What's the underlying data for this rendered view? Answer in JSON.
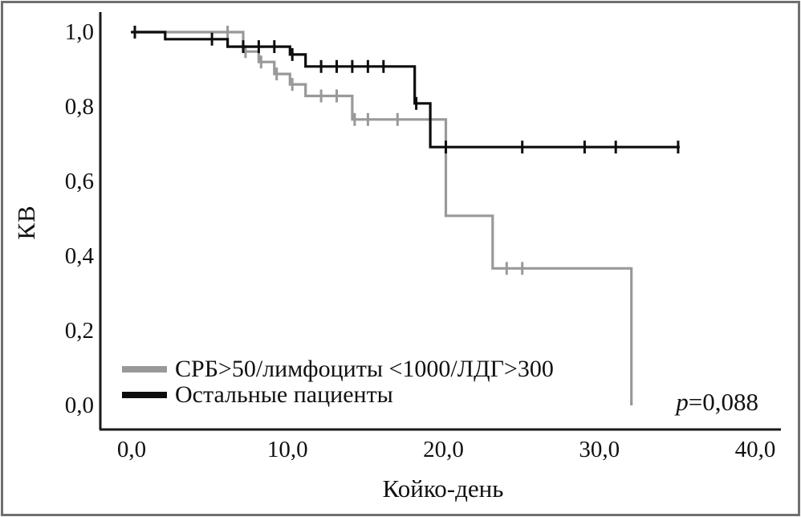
{
  "frame": {
    "border_color": "#6f6f6f"
  },
  "chart_data": {
    "type": "line",
    "subtype": "kaplan-meier-step-survival",
    "title": "",
    "xlabel": "Койко-день",
    "ylabel": "КВ",
    "xlim": [
      0,
      40
    ],
    "ylim": [
      0.0,
      1.0
    ],
    "grid": false,
    "legend_position": "inside-lower-left",
    "x_ticks": [
      {
        "label": "0,0",
        "value": 0
      },
      {
        "label": "10,0",
        "value": 10
      },
      {
        "label": "20,0",
        "value": 20
      },
      {
        "label": "30,0",
        "value": 30
      },
      {
        "label": "40,0",
        "value": 40
      }
    ],
    "y_ticks": [
      {
        "label": "0,0",
        "value": 0.0
      },
      {
        "label": "0,2",
        "value": 0.2
      },
      {
        "label": "0,4",
        "value": 0.4
      },
      {
        "label": "0,6",
        "value": 0.6
      },
      {
        "label": "0,8",
        "value": 0.8
      },
      {
        "label": "1,0",
        "value": 1.0
      }
    ],
    "annotation": {
      "symbol": "p",
      "value_text": "=0,088",
      "full": "p=0,088"
    },
    "series": [
      {
        "name": "СРБ>50/лимфоциты <1000/ЛДГ>300",
        "color": "#999999",
        "steps": [
          [
            0,
            1.0
          ],
          [
            7,
            1.0
          ],
          [
            7,
            0.948
          ],
          [
            8,
            0.948
          ],
          [
            8,
            0.92
          ],
          [
            9,
            0.92
          ],
          [
            9,
            0.888
          ],
          [
            10,
            0.888
          ],
          [
            10,
            0.86
          ],
          [
            11,
            0.86
          ],
          [
            11,
            0.829
          ],
          [
            14,
            0.829
          ],
          [
            14,
            0.766
          ],
          [
            20,
            0.766
          ],
          [
            20,
            0.508
          ],
          [
            23,
            0.508
          ],
          [
            23,
            0.367
          ],
          [
            31.9,
            0.367
          ],
          [
            31.9,
            0.0
          ]
        ],
        "censor_marks": [
          [
            6,
            1.0
          ],
          [
            7.15,
            0.948
          ],
          [
            8.15,
            0.92
          ],
          [
            9.15,
            0.888
          ],
          [
            10.15,
            0.86
          ],
          [
            12,
            0.829
          ],
          [
            13,
            0.829
          ],
          [
            14.15,
            0.766
          ],
          [
            15,
            0.766
          ],
          [
            16.9,
            0.766
          ],
          [
            23.9,
            0.367
          ],
          [
            24.9,
            0.367
          ]
        ]
      },
      {
        "name": "Остальные пациенты",
        "color": "#0d0d0d",
        "steps": [
          [
            -0.2,
            1.0
          ],
          [
            2,
            1.0
          ],
          [
            2,
            0.981
          ],
          [
            6,
            0.981
          ],
          [
            6,
            0.961
          ],
          [
            10,
            0.961
          ],
          [
            10,
            0.94
          ],
          [
            11,
            0.94
          ],
          [
            11,
            0.908
          ],
          [
            18,
            0.908
          ],
          [
            18,
            0.809
          ],
          [
            19,
            0.809
          ],
          [
            19,
            0.692
          ],
          [
            35,
            0.692
          ]
        ],
        "censor_marks": [
          [
            0.05,
            1.0
          ],
          [
            5,
            0.981
          ],
          [
            7,
            0.961
          ],
          [
            8,
            0.961
          ],
          [
            9,
            0.961
          ],
          [
            10.15,
            0.94
          ],
          [
            12,
            0.908
          ],
          [
            13,
            0.908
          ],
          [
            14,
            0.908
          ],
          [
            15,
            0.908
          ],
          [
            16,
            0.908
          ],
          [
            18.1,
            0.809
          ],
          [
            20,
            0.692
          ],
          [
            24.9,
            0.692
          ],
          [
            28.9,
            0.692
          ],
          [
            30.9,
            0.692
          ],
          [
            34.9,
            0.692
          ]
        ]
      }
    ]
  }
}
